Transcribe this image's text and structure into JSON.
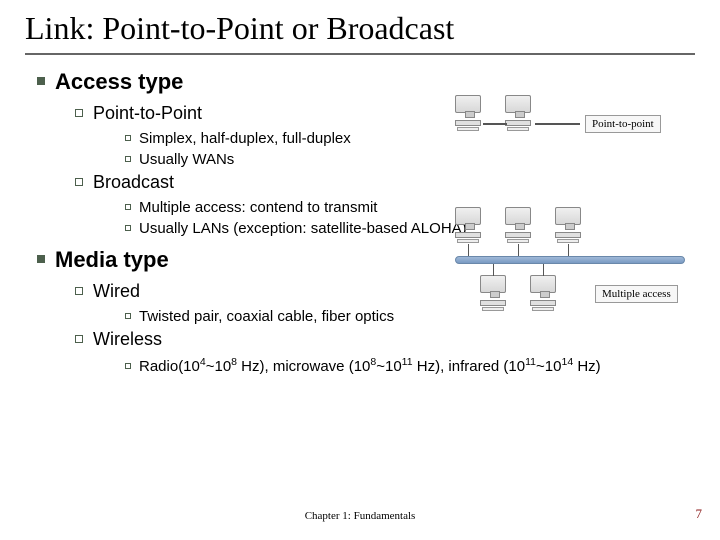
{
  "title": "Link: Point-to-Point or Broadcast",
  "footer": "Chapter 1: Fundamentals",
  "pageNumber": "7",
  "sections": [
    {
      "label": "Access type",
      "items": [
        {
          "label": "Point-to-Point",
          "subitems": [
            "Simplex, half-duplex, full-duplex",
            "Usually WANs"
          ]
        },
        {
          "label": "Broadcast",
          "subitems": [
            "Multiple access: contend to transmit",
            "Usually LANs (exception: satellite-based ALOHA)"
          ]
        }
      ]
    },
    {
      "label": "Media type",
      "items": [
        {
          "label": "Wired",
          "subitems": [
            "Twisted pair, coaxial cable, fiber optics"
          ]
        },
        {
          "label": "Wireless",
          "subitems_html": [
            "Radio(10<sup>4</sup>~10<sup>8</sup> Hz), microwave (10<sup>8</sup>~10<sup>11</sup> Hz), infrared (10<sup>11</sup>~10<sup>14</sup> Hz)"
          ]
        }
      ]
    }
  ],
  "diagrams": {
    "p2p_label": "Point-to-point",
    "ma_label": "Multiple access"
  },
  "colors": {
    "bullet": "#4d604d",
    "pagenum": "#8b1a1a",
    "title_rule": "#666666"
  }
}
